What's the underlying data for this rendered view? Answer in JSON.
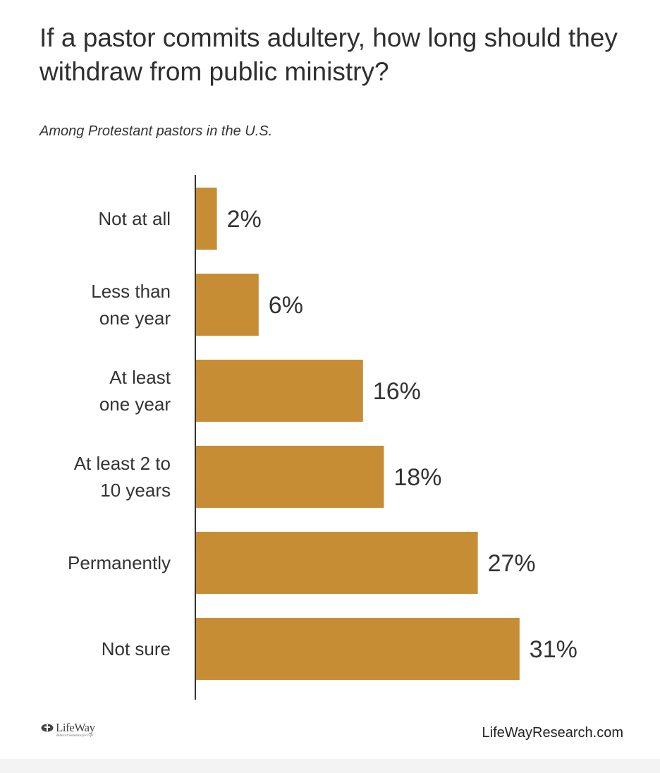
{
  "header": {
    "title": "If a pastor commits adultery, how long should they withdraw from public ministry?",
    "subtitle": "Among Protestant pastors in the U.S."
  },
  "chart_data": {
    "type": "bar",
    "orientation": "horizontal",
    "categories": [
      [
        "Not at all"
      ],
      [
        "Less than",
        "one year"
      ],
      [
        "At least",
        "one year"
      ],
      [
        "At least 2 to",
        "10 years"
      ],
      [
        "Permanently"
      ],
      [
        "Not sure"
      ]
    ],
    "values": [
      2,
      6,
      16,
      18,
      27,
      31
    ],
    "value_labels": [
      "2%",
      "6%",
      "16%",
      "18%",
      "27%",
      "31%"
    ],
    "unit": "%",
    "bar_color": "#C68D35",
    "axis_color": "#333333",
    "grid": false,
    "legend": "none"
  },
  "footer": {
    "logo_text": "LifeWay",
    "logo_tagline": "Biblical Solutions for Life",
    "site": "LifeWayResearch.com"
  },
  "icons": {
    "logo": "lifeway-logo-icon"
  }
}
